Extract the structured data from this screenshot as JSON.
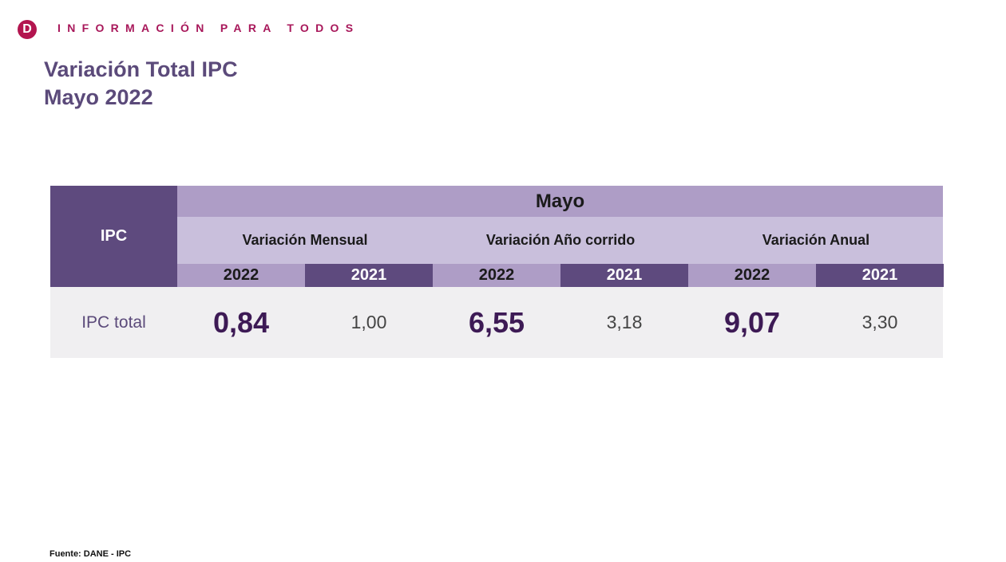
{
  "header": {
    "tagline": "INFORMACIÓN PARA TODOS",
    "logo_letter": "D",
    "title_line1": "Variación Total IPC",
    "title_line2": "Mayo 2022"
  },
  "table": {
    "row_header": "IPC",
    "period": "Mayo",
    "groups": [
      {
        "label": "Variación Mensual",
        "years": [
          "2022",
          "2021"
        ],
        "values": [
          "0,84",
          "1,00"
        ]
      },
      {
        "label": "Variación Año corrido",
        "years": [
          "2022",
          "2021"
        ],
        "values": [
          "6,55",
          "3,18"
        ]
      },
      {
        "label": "Variación Anual",
        "years": [
          "2022",
          "2021"
        ],
        "values": [
          "9,07",
          "3,30"
        ]
      }
    ],
    "row_label": "IPC total"
  },
  "source": "Fuente: DANE - IPC",
  "colors": {
    "dark": "#5e4a7e",
    "light": "#ae9dc6",
    "mid": "#c9bfdc",
    "row": "#f0eff1",
    "accent": "#b3154f"
  }
}
